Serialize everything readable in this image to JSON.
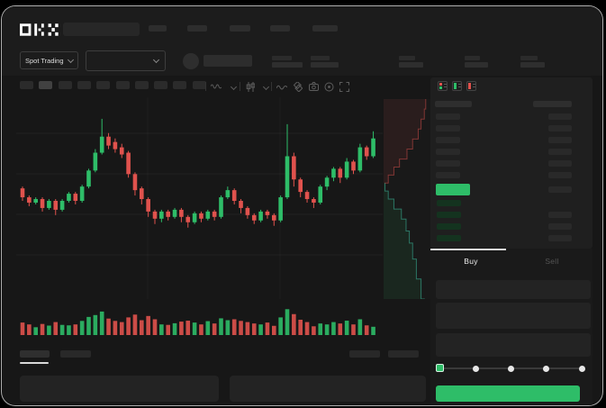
{
  "colors": {
    "green": "#2ebd68",
    "red": "#e0524d",
    "bid_row_green": "#14331f",
    "depth_ask_line": "rgba(224,82,77,0.5)",
    "depth_bid_line": "rgba(60,190,160,0.55)",
    "tab_indicator": "#dcdcdc"
  },
  "header": {
    "logo_text": "OKX",
    "search_value": "",
    "nav_item_count": 5
  },
  "market_bar": {
    "market_type_label": "Spot Trading",
    "pair_select_value": "",
    "stat_placeholder_count": 5
  },
  "toolbar": {
    "interval_placeholder_count": 10,
    "active_interval_index": 1,
    "icons": [
      "indicators-wave",
      "chevron-down",
      "candle-type",
      "chevron-down",
      "line-tool",
      "tags",
      "camera",
      "target",
      "fullscreen"
    ]
  },
  "chart_data": {
    "type": "candlestick",
    "title": "",
    "xlabel": "",
    "ylabel": "",
    "axis_labels_visible": false,
    "value_range": [
      0,
      100
    ],
    "grid": true,
    "candles": [
      [
        57,
        52,
        50,
        58
      ],
      [
        52,
        49,
        47,
        53
      ],
      [
        49,
        51,
        48,
        52
      ],
      [
        51,
        46,
        44,
        52
      ],
      [
        46,
        50,
        45,
        51
      ],
      [
        50,
        45,
        42,
        51
      ],
      [
        45,
        50,
        44,
        51
      ],
      [
        50,
        54,
        49,
        55
      ],
      [
        54,
        50,
        48,
        55
      ],
      [
        50,
        58,
        49,
        59
      ],
      [
        58,
        67,
        57,
        68
      ],
      [
        67,
        77,
        66,
        79
      ],
      [
        77,
        86,
        76,
        96
      ],
      [
        86,
        81,
        79,
        88
      ],
      [
        83,
        79,
        77,
        85
      ],
      [
        80,
        76,
        74,
        82
      ],
      [
        77,
        65,
        63,
        78
      ],
      [
        65,
        56,
        53,
        66
      ],
      [
        57,
        51,
        48,
        58
      ],
      [
        51,
        44,
        41,
        52
      ],
      [
        44,
        40,
        37,
        45
      ],
      [
        40,
        44,
        38,
        45
      ],
      [
        44,
        41,
        39,
        45
      ],
      [
        41,
        45,
        40,
        46
      ],
      [
        45,
        41,
        38,
        46
      ],
      [
        41,
        38,
        35,
        42
      ],
      [
        38,
        43,
        37,
        44
      ],
      [
        43,
        40,
        38,
        44
      ],
      [
        40,
        44,
        39,
        45
      ],
      [
        44,
        41,
        39,
        45
      ],
      [
        41,
        52,
        40,
        53
      ],
      [
        52,
        56,
        51,
        58
      ],
      [
        56,
        50,
        48,
        57
      ],
      [
        50,
        46,
        43,
        51
      ],
      [
        46,
        42,
        40,
        47
      ],
      [
        42,
        39,
        37,
        43
      ],
      [
        39,
        44,
        38,
        45
      ],
      [
        44,
        42,
        40,
        45
      ],
      [
        42,
        39,
        36,
        43
      ],
      [
        39,
        52,
        38,
        53
      ],
      [
        52,
        75,
        51,
        93
      ],
      [
        75,
        62,
        58,
        77
      ],
      [
        62,
        55,
        52,
        63
      ],
      [
        55,
        51,
        49,
        56
      ],
      [
        51,
        49,
        46,
        52
      ],
      [
        49,
        58,
        48,
        59
      ],
      [
        58,
        63,
        56,
        64
      ],
      [
        63,
        68,
        61,
        69
      ],
      [
        68,
        63,
        60,
        69
      ],
      [
        63,
        72,
        62,
        74
      ],
      [
        72,
        67,
        65,
        73
      ],
      [
        67,
        80,
        66,
        82
      ],
      [
        80,
        75,
        73,
        81
      ],
      [
        75,
        85,
        74,
        89
      ]
    ],
    "volumes": [
      38,
      30,
      18,
      32,
      25,
      40,
      28,
      26,
      30,
      45,
      62,
      70,
      85,
      55,
      45,
      40,
      60,
      72,
      48,
      66,
      52,
      30,
      28,
      35,
      42,
      46,
      38,
      30,
      44,
      34,
      56,
      48,
      52,
      45,
      40,
      34,
      30,
      38,
      24,
      60,
      95,
      74,
      50,
      40,
      22,
      34,
      30,
      40,
      34,
      46,
      30,
      52,
      26,
      20
    ],
    "depth_profile": {
      "asks": [
        [
          0,
          0.9
        ],
        [
          0.05,
          0.87
        ],
        [
          0.1,
          0.8
        ],
        [
          0.15,
          0.74
        ],
        [
          0.2,
          0.62
        ],
        [
          0.25,
          0.5
        ],
        [
          0.3,
          0.34
        ],
        [
          0.34,
          0.22
        ],
        [
          0.38,
          0.1
        ],
        [
          0.42,
          0.02
        ]
      ],
      "bids": [
        [
          0.42,
          0.03
        ],
        [
          0.46,
          0.1
        ],
        [
          0.5,
          0.22
        ],
        [
          0.55,
          0.38
        ],
        [
          0.6,
          0.48
        ],
        [
          0.66,
          0.55
        ],
        [
          0.72,
          0.62
        ],
        [
          0.8,
          0.7
        ],
        [
          0.9,
          0.8
        ],
        [
          1.0,
          0.88
        ]
      ]
    }
  },
  "order_book": {
    "view_icons": [
      "combined-book",
      "bids-book",
      "asks-book"
    ],
    "header_columns": 2,
    "ask_row_count": 6,
    "bid_row_count": 4,
    "last_price_highlight": "green"
  },
  "trade_panel": {
    "buy_tab_label": "Buy",
    "sell_tab_label": "Sell",
    "active_tab": "Buy",
    "input_row_count": 3,
    "amount_slider": {
      "positions": 5,
      "selected_index": 0
    },
    "submit_label": ""
  },
  "bottom_bar": {
    "tab_placeholder_count": 2,
    "active_tab_index": 0,
    "right_placeholder_count": 2,
    "panel_count": 2
  }
}
